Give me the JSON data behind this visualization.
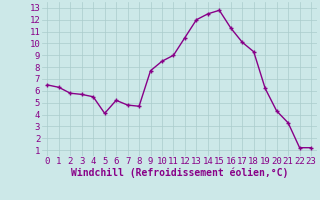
{
  "x": [
    0,
    1,
    2,
    3,
    4,
    5,
    6,
    7,
    8,
    9,
    10,
    11,
    12,
    13,
    14,
    15,
    16,
    17,
    18,
    19,
    20,
    21,
    22,
    23
  ],
  "y": [
    6.5,
    6.3,
    5.8,
    5.7,
    5.5,
    4.1,
    5.2,
    4.8,
    4.7,
    7.7,
    8.5,
    9.0,
    10.5,
    12.0,
    12.5,
    12.8,
    11.3,
    10.1,
    9.3,
    6.2,
    4.3,
    3.3,
    1.2,
    1.2
  ],
  "line_color": "#880088",
  "marker": "+",
  "bg_color": "#cce8e8",
  "grid_color": "#aacccc",
  "xlabel": "Windchill (Refroidissement éolien,°C)",
  "xlabel_color": "#880088",
  "ylabel_ticks": [
    1,
    2,
    3,
    4,
    5,
    6,
    7,
    8,
    9,
    10,
    11,
    12,
    13
  ],
  "xlabel_ticks": [
    0,
    1,
    2,
    3,
    4,
    5,
    6,
    7,
    8,
    9,
    10,
    11,
    12,
    13,
    14,
    15,
    16,
    17,
    18,
    19,
    20,
    21,
    22,
    23
  ],
  "ylim": [
    0.5,
    13.5
  ],
  "xlim": [
    -0.5,
    23.5
  ],
  "tick_font_size": 6.5,
  "xlabel_font_size": 7.0,
  "marker_size": 3,
  "linewidth": 1.0
}
